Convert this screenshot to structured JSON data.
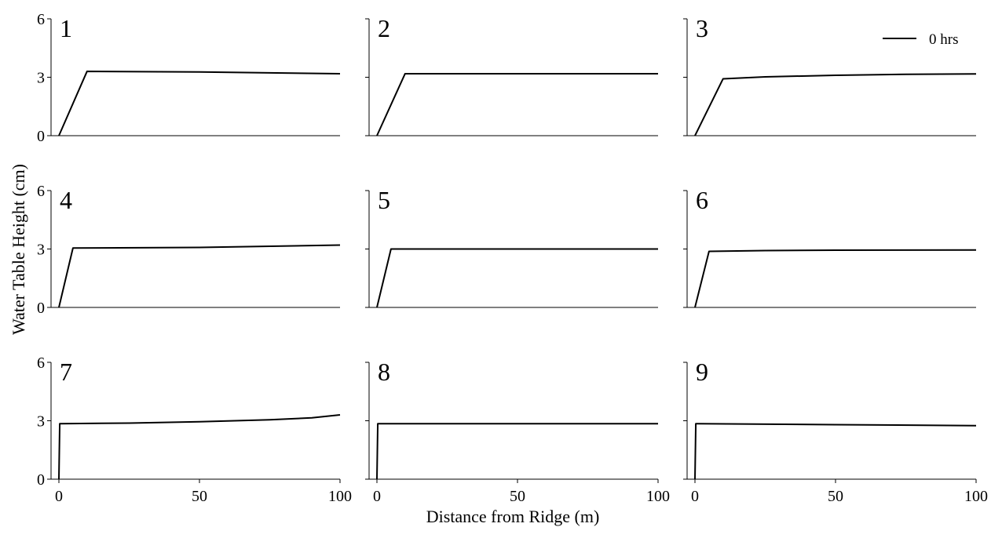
{
  "figure": {
    "xlabel": "Distance from Ridge (m)",
    "ylabel": "Water Table Height (cm)"
  },
  "chart_data": {
    "type": "line",
    "xlim": [
      0,
      100
    ],
    "ylim": [
      0,
      6
    ],
    "xticks": [
      "0",
      "50",
      "100"
    ],
    "yticks": [
      "0",
      "3",
      "6"
    ],
    "grid": false,
    "legend": {
      "placement": "top-right of panel 3",
      "entries": [
        "0 hrs"
      ]
    },
    "line_color": "#000000",
    "panels": [
      {
        "label": "1",
        "series": [
          {
            "name": "0 hrs",
            "x": [
              0,
              10,
              50,
              100
            ],
            "y": [
              0,
              3.3,
              3.27,
              3.18
            ]
          }
        ]
      },
      {
        "label": "2",
        "series": [
          {
            "name": "0 hrs",
            "x": [
              0,
              10,
              50,
              100
            ],
            "y": [
              0,
              3.18,
              3.18,
              3.18
            ]
          }
        ]
      },
      {
        "label": "3",
        "series": [
          {
            "name": "0 hrs",
            "x": [
              0,
              10,
              25,
              50,
              75,
              100
            ],
            "y": [
              0,
              2.92,
              3.02,
              3.1,
              3.15,
              3.17
            ]
          }
        ]
      },
      {
        "label": "4",
        "series": [
          {
            "name": "0 hrs",
            "x": [
              0,
              5,
              50,
              100
            ],
            "y": [
              0,
              3.05,
              3.08,
              3.2
            ]
          }
        ]
      },
      {
        "label": "5",
        "series": [
          {
            "name": "0 hrs",
            "x": [
              0,
              5,
              50,
              100
            ],
            "y": [
              0,
              3.0,
              3.0,
              3.0
            ]
          }
        ]
      },
      {
        "label": "6",
        "series": [
          {
            "name": "0 hrs",
            "x": [
              0,
              5,
              25,
              50,
              100
            ],
            "y": [
              0,
              2.88,
              2.92,
              2.94,
              2.95
            ]
          }
        ]
      },
      {
        "label": "7",
        "series": [
          {
            "name": "0 hrs",
            "x": [
              0,
              0.3,
              25,
              50,
              75,
              90,
              100
            ],
            "y": [
              0,
              2.85,
              2.88,
              2.95,
              3.05,
              3.15,
              3.3
            ]
          }
        ]
      },
      {
        "label": "8",
        "series": [
          {
            "name": "0 hrs",
            "x": [
              0,
              0.3,
              50,
              100
            ],
            "y": [
              0,
              2.85,
              2.85,
              2.85
            ]
          }
        ]
      },
      {
        "label": "9",
        "series": [
          {
            "name": "0 hrs",
            "x": [
              0,
              0.3,
              50,
              100
            ],
            "y": [
              0,
              2.85,
              2.8,
              2.75
            ]
          }
        ]
      }
    ]
  }
}
